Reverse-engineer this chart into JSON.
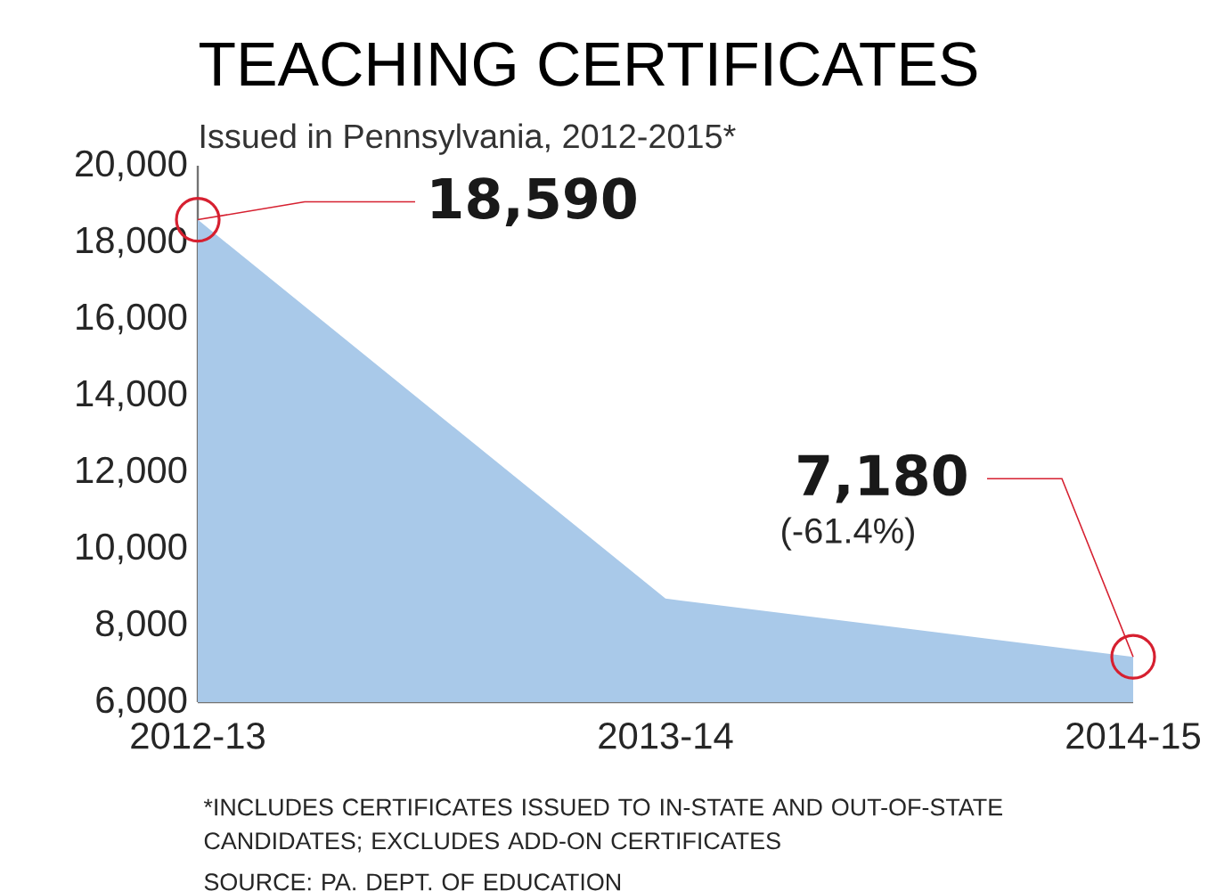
{
  "chart_data": {
    "type": "area",
    "title": "TEACHING CERTIFICATES",
    "subtitle": "Issued in Pennsylvania, 2012-2015*",
    "categories": [
      "2012-13",
      "2013-14",
      "2014-15"
    ],
    "values": [
      18590,
      8700,
      7180
    ],
    "color": "#a9c9e9",
    "ylim": [
      6000,
      20000
    ],
    "yticks": [
      {
        "value": 6000,
        "label": "6,000"
      },
      {
        "value": 8000,
        "label": "8,000"
      },
      {
        "value": 10000,
        "label": "10,000"
      },
      {
        "value": 12000,
        "label": "12,000"
      },
      {
        "value": 14000,
        "label": "14,000"
      },
      {
        "value": 16000,
        "label": "16,000"
      },
      {
        "value": 18000,
        "label": "18,000"
      },
      {
        "value": 20000,
        "label": "20,000"
      }
    ],
    "grid": false,
    "annotations": [
      {
        "text": "18,590",
        "x": "2012-13",
        "y": 18590
      },
      {
        "text": "7,180",
        "x": "2014-15",
        "y": 7180
      },
      "(-61.4%)",
      "*INCLUDES CERTIFICATES ISSUED TO IN-STATE AND OUT-OF-STATE CANDIDATES; EXCLUDES ADD-ON CERTIFICATES",
      "SOURCE: PA. DEPT. OF EDUCATION"
    ]
  }
}
